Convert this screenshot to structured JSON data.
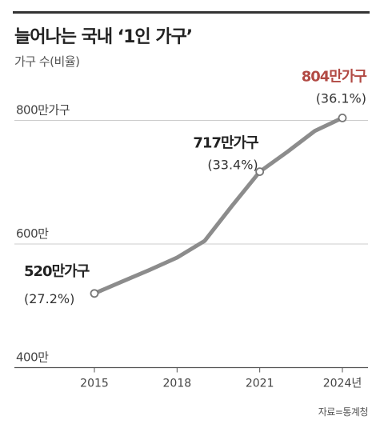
{
  "title": "늘어나는 국내 ‘1인 가구’",
  "subtitle": "가구 수(비율)",
  "source": "자료=통계청",
  "colors": {
    "line": "#8c8c8c",
    "highlight": "#b24a44",
    "text": "#222222",
    "grid": "#cccccc"
  },
  "chart_data": {
    "type": "line",
    "title": "늘어나는 국내 ‘1인 가구’",
    "ylabel": "가구 수(비율)",
    "xlabel": "",
    "ylim": [
      400,
      804
    ],
    "y_ticks": [
      {
        "value": 400,
        "label": "400만"
      },
      {
        "value": 600,
        "label": "600만"
      },
      {
        "value": 800,
        "label": "800만가구"
      }
    ],
    "x_ticks": [
      {
        "value": 2015,
        "label": "2015"
      },
      {
        "value": 2018,
        "label": "2018"
      },
      {
        "value": 2021,
        "label": "2021"
      },
      {
        "value": 2024,
        "label": "2024년"
      }
    ],
    "xlim": [
      2015,
      2024
    ],
    "series": [
      {
        "x": [
          2015,
          2016,
          2017,
          2018,
          2019,
          2020,
          2021,
          2022,
          2023,
          2024
        ],
        "values": [
          520,
          539,
          558,
          578,
          605,
          662,
          717,
          749,
          783,
          804
        ]
      }
    ],
    "annotations": [
      {
        "x": 2015,
        "y": 520,
        "value_label": "520만가구",
        "pct_label": "(27.2%)",
        "highlight": false
      },
      {
        "x": 2021,
        "y": 717,
        "value_label": "717만가구",
        "pct_label": "(33.4%)",
        "highlight": false
      },
      {
        "x": 2024,
        "y": 804,
        "value_label": "804만가구",
        "pct_label": "(36.1%)",
        "highlight": true
      }
    ],
    "grid": true
  }
}
